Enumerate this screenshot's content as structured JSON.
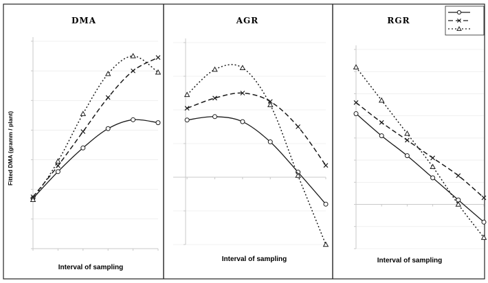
{
  "chart_data": [
    {
      "type": "line",
      "title": "DMA",
      "xlabel": "Interval of sampling",
      "ylabel": "Fitted DMA (gramm / plant)",
      "x": [
        1,
        2,
        3,
        4,
        5,
        6
      ],
      "xlim": [
        1,
        6
      ],
      "ylim": [
        0,
        14
      ],
      "series": [
        {
          "values": [
            3.4,
            5.2,
            6.8,
            8.1,
            8.7,
            8.5
          ],
          "marker": "circle",
          "dash": "solid"
        },
        {
          "values": [
            3.5,
            5.6,
            7.9,
            10.2,
            12.0,
            12.9
          ],
          "marker": "x",
          "dash": "dashed"
        },
        {
          "values": [
            3.3,
            5.9,
            9.1,
            11.8,
            13.0,
            11.9
          ],
          "marker": "triangle",
          "dash": "dotted"
        }
      ],
      "grid": true
    },
    {
      "type": "line",
      "title": "AGR",
      "xlabel": "Interval of sampling",
      "x": [
        1,
        2,
        3,
        4,
        5,
        6
      ],
      "xlim": [
        0.5,
        6
      ],
      "ylim": [
        -4,
        8
      ],
      "series": [
        {
          "values": [
            3.4,
            3.6,
            3.3,
            2.1,
            0.3,
            -1.6
          ],
          "marker": "circle",
          "dash": "solid"
        },
        {
          "values": [
            4.1,
            4.7,
            5.0,
            4.5,
            3.0,
            0.7
          ],
          "marker": "x",
          "dash": "dashed"
        },
        {
          "values": [
            4.9,
            6.4,
            6.5,
            4.3,
            0.1,
            -4.0
          ],
          "marker": "triangle",
          "dash": "dotted"
        }
      ],
      "grid": true
    },
    {
      "type": "line",
      "title": "RGR",
      "xlabel": "Interval of sampling",
      "x": [
        1,
        2,
        3,
        4,
        5,
        6
      ],
      "xlim": [
        1,
        6
      ],
      "ylim": [
        -0.2,
        0.7
      ],
      "series": [
        {
          "values": [
            0.41,
            0.31,
            0.22,
            0.12,
            0.02,
            -0.08
          ],
          "marker": "circle",
          "dash": "solid"
        },
        {
          "values": [
            0.46,
            0.37,
            0.29,
            0.21,
            0.13,
            0.03
          ],
          "marker": "x",
          "dash": "dashed"
        },
        {
          "values": [
            0.62,
            0.47,
            0.32,
            0.17,
            0.0,
            -0.15
          ],
          "marker": "triangle",
          "dash": "dotted"
        }
      ],
      "grid": true,
      "legend": "top-right"
    }
  ]
}
